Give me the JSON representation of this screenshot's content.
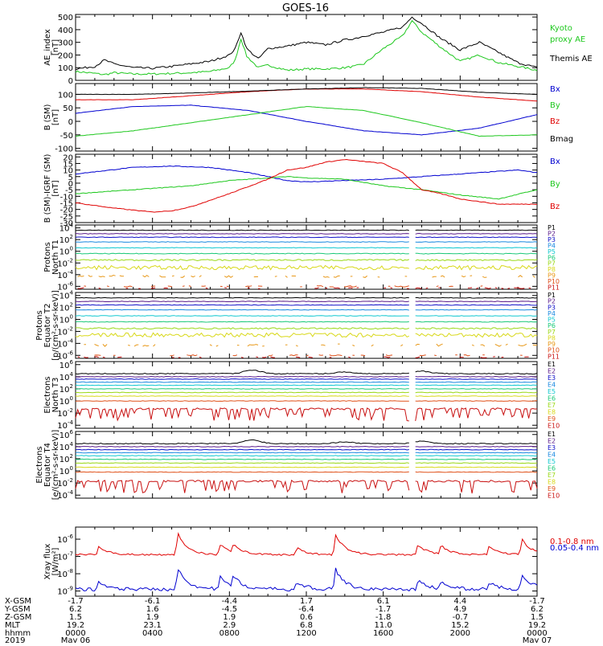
{
  "title": "GOES-16",
  "colors": {
    "black": "#000000",
    "red": "#e00000",
    "green": "#1ec81e",
    "blue": "#0000d0",
    "p1": "#000000",
    "p2": "#5a1a8a",
    "p3": "#1010c8",
    "p4": "#1888e0",
    "p5": "#10c8d0",
    "p6": "#18c878",
    "p7": "#9ad818",
    "p8": "#d8d818",
    "p9": "#e89818",
    "p10": "#e05018",
    "p11": "#c81010"
  },
  "chart_data": [
    {
      "type": "line",
      "ylabel": [
        "AE_index",
        "[nT]"
      ],
      "ylim": [
        0,
        520
      ],
      "yticks": [
        0,
        100,
        200,
        300,
        400,
        500
      ],
      "series": [
        {
          "name": "Kyoto proxy AE",
          "color": "#1ec81e",
          "x": [
            0,
            1,
            1.5,
            2,
            3,
            4,
            5,
            6,
            7,
            8,
            8.3,
            8.6,
            8.9,
            9.5,
            10,
            11,
            12,
            13,
            14,
            14.5,
            15,
            16,
            17,
            17.5,
            18,
            19,
            20,
            21,
            22,
            23,
            24
          ],
          "y": [
            70,
            55,
            45,
            60,
            50,
            50,
            55,
            60,
            70,
            100,
            160,
            330,
            190,
            100,
            120,
            80,
            90,
            90,
            100,
            110,
            130,
            250,
            350,
            470,
            380,
            260,
            150,
            200,
            140,
            110,
            80
          ]
        },
        {
          "name": "Themis AE",
          "color": "#000000",
          "x": [
            0,
            1,
            1.5,
            2,
            3,
            4,
            5,
            6,
            7,
            8,
            8.3,
            8.6,
            8.9,
            9.5,
            10,
            11,
            12,
            13,
            14,
            14.5,
            15,
            16,
            17,
            17.5,
            18,
            19,
            20,
            21,
            22,
            23,
            24
          ],
          "y": [
            90,
            110,
            160,
            130,
            100,
            95,
            110,
            130,
            150,
            200,
            250,
            380,
            250,
            170,
            250,
            270,
            300,
            280,
            320,
            330,
            350,
            380,
            420,
            500,
            450,
            330,
            240,
            300,
            220,
            140,
            100
          ]
        }
      ]
    },
    {
      "type": "line",
      "ylabel": [
        "B (SM)",
        "[nT]"
      ],
      "ylim": [
        -110,
        140
      ],
      "yticks": [
        -100,
        -50,
        0,
        50,
        100
      ],
      "series": [
        {
          "name": "Bx",
          "color": "#0000d0",
          "x": [
            0,
            3,
            6,
            9,
            12,
            15,
            18,
            21,
            24
          ],
          "y": [
            30,
            55,
            60,
            40,
            0,
            -35,
            -50,
            -25,
            25
          ]
        },
        {
          "name": "By",
          "color": "#1ec81e",
          "x": [
            0,
            3,
            6,
            9,
            12,
            15,
            18,
            21,
            24
          ],
          "y": [
            -55,
            -35,
            -5,
            25,
            55,
            40,
            -5,
            -55,
            -50
          ]
        },
        {
          "name": "Bz",
          "color": "#e00000",
          "x": [
            0,
            3,
            6,
            9,
            12,
            15,
            18,
            21,
            24
          ],
          "y": [
            80,
            80,
            95,
            110,
            120,
            120,
            110,
            90,
            75
          ]
        },
        {
          "name": "Bmag",
          "color": "#000000",
          "x": [
            0,
            3,
            6,
            9,
            12,
            15,
            18,
            21,
            24
          ],
          "y": [
            100,
            100,
            105,
            112,
            120,
            125,
            122,
            108,
            100
          ]
        }
      ]
    },
    {
      "type": "line",
      "ylabel": [
        "B (SM)-IGRF (SM)",
        "[nT]"
      ],
      "ylim": [
        -30,
        22
      ],
      "yticks": [
        -30,
        -25,
        -20,
        -15,
        -10,
        -5,
        0,
        5,
        10,
        15,
        20
      ],
      "series": [
        {
          "name": "Bx",
          "color": "#0000d0",
          "x": [
            0,
            3,
            5,
            7,
            9,
            10,
            11,
            12,
            14,
            16,
            18,
            20,
            21,
            22,
            23,
            24
          ],
          "y": [
            7,
            12,
            13,
            12,
            8,
            5,
            2,
            1,
            2,
            3,
            5,
            7,
            8,
            9,
            10,
            8
          ]
        },
        {
          "name": "By",
          "color": "#1ec81e",
          "x": [
            0,
            2,
            4,
            6,
            8,
            10,
            11,
            12,
            14,
            16,
            18,
            20,
            22,
            24
          ],
          "y": [
            -8,
            -6,
            -4,
            -2,
            2,
            4,
            5,
            4,
            3,
            -2,
            -5,
            -9,
            -12,
            -5
          ]
        },
        {
          "name": "Bz",
          "color": "#e00000",
          "x": [
            0,
            2,
            4,
            5,
            6,
            8,
            10,
            11,
            12,
            13,
            14,
            16,
            17,
            18,
            19,
            20,
            22,
            24
          ],
          "y": [
            -15,
            -19,
            -22,
            -21,
            -18,
            -8,
            3,
            10,
            12,
            16,
            18,
            15,
            8,
            -5,
            -8,
            -12,
            -16,
            -16
          ]
        }
      ]
    },
    {
      "type": "line",
      "log": true,
      "ylabel": [
        "Protons",
        "North T1"
      ],
      "ylim": [
        -6.5,
        4.5
      ],
      "yticks": [
        -6,
        -4,
        -2,
        0,
        2,
        4
      ],
      "gap": 17.5,
      "series": [
        {
          "name": "P1",
          "color": "#000000",
          "y0": 3.6,
          "noise": 0.05
        },
        {
          "name": "P2",
          "color": "#5a1a8a",
          "y0": 3.0,
          "noise": 0.05
        },
        {
          "name": "P3",
          "color": "#1010c8",
          "y0": 2.4,
          "noise": 0.05
        },
        {
          "name": "P4",
          "color": "#1888e0",
          "y0": 1.6,
          "noise": 0.05
        },
        {
          "name": "P5",
          "color": "#10c8d0",
          "y0": 0.6,
          "noise": 0.05
        },
        {
          "name": "P6",
          "color": "#18c878",
          "y0": -0.4,
          "noise": 0.06
        },
        {
          "name": "P7",
          "color": "#9ad818",
          "y0": -1.5,
          "noise": 0.12
        },
        {
          "name": "P8",
          "color": "#d8d818",
          "y0": -2.8,
          "noise": 0.35
        },
        {
          "name": "P9",
          "color": "#e89818",
          "y0": -4.3,
          "noise": 0.2,
          "sparse": true
        },
        {
          "name": "P10",
          "color": "#e05018",
          "y0": -6.0,
          "noise": 0.1,
          "sparse": true
        },
        {
          "name": "P11",
          "color": "#c81010",
          "y0": -6.3,
          "noise": 0.1,
          "sparse": true
        }
      ]
    },
    {
      "type": "line",
      "log": true,
      "ylabel": [
        "Protons",
        "Equator T2",
        "[p/(cm²-s-sr-keV)]"
      ],
      "ylim": [
        -6.5,
        4.5
      ],
      "yticks": [
        -6,
        -4,
        -2,
        0,
        2,
        4
      ],
      "gap": 17.5,
      "series": [
        {
          "name": "P1",
          "color": "#000000",
          "y0": 3.6,
          "noise": 0.05
        },
        {
          "name": "P2",
          "color": "#5a1a8a",
          "y0": 3.0,
          "noise": 0.05
        },
        {
          "name": "P3",
          "color": "#1010c8",
          "y0": 2.4,
          "noise": 0.05
        },
        {
          "name": "P4",
          "color": "#1888e0",
          "y0": 1.6,
          "noise": 0.05
        },
        {
          "name": "P5",
          "color": "#10c8d0",
          "y0": 0.6,
          "noise": 0.05
        },
        {
          "name": "P6",
          "color": "#18c878",
          "y0": -0.4,
          "noise": 0.06
        },
        {
          "name": "P7",
          "color": "#9ad818",
          "y0": -1.5,
          "noise": 0.12
        },
        {
          "name": "P8",
          "color": "#d8d818",
          "y0": -2.6,
          "noise": 0.35
        },
        {
          "name": "P9",
          "color": "#e89818",
          "y0": -4.3,
          "noise": 0.2,
          "sparse": true
        },
        {
          "name": "P10",
          "color": "#e05018",
          "y0": -6.0,
          "noise": 0.1,
          "sparse": true
        },
        {
          "name": "P11",
          "color": "#c81010",
          "y0": -6.3,
          "noise": 0.1,
          "sparse": true
        }
      ]
    },
    {
      "type": "line",
      "log": true,
      "ylabel": [
        "Electrons",
        "North T3"
      ],
      "ylim": [
        -4.5,
        6.5
      ],
      "yticks": [
        -4,
        -2,
        0,
        2,
        4,
        6
      ],
      "gap": 17.5,
      "series": [
        {
          "name": "E1",
          "color": "#000000",
          "y0": 4.5,
          "noise": 0.08,
          "bumps": [
            [
              9.2,
              0.6
            ],
            [
              14,
              0.3
            ],
            [
              18,
              0.4
            ]
          ]
        },
        {
          "name": "E2",
          "color": "#5a1a8a",
          "y0": 4.0,
          "noise": 0.05
        },
        {
          "name": "E3",
          "color": "#1010c8",
          "y0": 3.6,
          "noise": 0.05
        },
        {
          "name": "E4",
          "color": "#1888e0",
          "y0": 3.1,
          "noise": 0.05
        },
        {
          "name": "E5",
          "color": "#10c8d0",
          "y0": 2.6,
          "noise": 0.05
        },
        {
          "name": "E6",
          "color": "#18c878",
          "y0": 2.0,
          "noise": 0.05
        },
        {
          "name": "E7",
          "color": "#9ad818",
          "y0": 1.4,
          "noise": 0.05
        },
        {
          "name": "E8",
          "color": "#d8d818",
          "y0": 0.8,
          "noise": 0.05
        },
        {
          "name": "E9",
          "color": "#e05018",
          "y0": 0.0,
          "noise": 0.05
        },
        {
          "name": "E10",
          "color": "#c81010",
          "y0": -1.3,
          "noise": 0.15,
          "spikes": true
        }
      ]
    },
    {
      "type": "line",
      "log": true,
      "ylabel": [
        "Electrons",
        "Equator T4",
        "[e/(cm²-s-sr-keV)]"
      ],
      "ylim": [
        -4.5,
        6.5
      ],
      "yticks": [
        -4,
        -2,
        0,
        2,
        4,
        6
      ],
      "gap": 17.5,
      "series": [
        {
          "name": "E1",
          "color": "#000000",
          "y0": 4.5,
          "noise": 0.08,
          "bumps": [
            [
              9.2,
              0.6
            ],
            [
              14,
              0.3
            ],
            [
              18,
              0.4
            ]
          ]
        },
        {
          "name": "E2",
          "color": "#5a1a8a",
          "y0": 4.0,
          "noise": 0.05
        },
        {
          "name": "E3",
          "color": "#1010c8",
          "y0": 3.5,
          "noise": 0.05
        },
        {
          "name": "E4",
          "color": "#1888e0",
          "y0": 3.0,
          "noise": 0.05
        },
        {
          "name": "E5",
          "color": "#10c8d0",
          "y0": 2.5,
          "noise": 0.05
        },
        {
          "name": "E6",
          "color": "#18c878",
          "y0": 1.9,
          "noise": 0.05
        },
        {
          "name": "E7",
          "color": "#9ad818",
          "y0": 1.3,
          "noise": 0.05
        },
        {
          "name": "E8",
          "color": "#d8d818",
          "y0": 0.6,
          "noise": 0.05
        },
        {
          "name": "E9",
          "color": "#e05018",
          "y0": -0.2,
          "noise": 0.05
        },
        {
          "name": "E10",
          "color": "#c81010",
          "y0": -1.7,
          "noise": 0.15,
          "spikes": true
        }
      ]
    },
    {
      "type": "line",
      "log": true,
      "ylabel": [
        "Xray flux",
        "[W/m²]"
      ],
      "ylim": [
        -9.3,
        -5.3
      ],
      "yticks": [
        -9,
        -8,
        -7,
        -6
      ],
      "series": [
        {
          "name": "0.1-0.8 nm",
          "color": "#e00000",
          "y0": -6.9,
          "noise": 0.05,
          "flares": [
            [
              1.2,
              0.5
            ],
            [
              5.3,
              1.3
            ],
            [
              7.5,
              0.6
            ],
            [
              8.2,
              0.5
            ],
            [
              11.5,
              0.4
            ],
            [
              13.5,
              1.2
            ],
            [
              17.8,
              0.6
            ],
            [
              19.0,
              0.5
            ],
            [
              21.5,
              0.5
            ],
            [
              23.2,
              0.9
            ]
          ]
        },
        {
          "name": "0.05-0.4 nm",
          "color": "#0000d0",
          "y0": -8.9,
          "noise": 0.1,
          "flares": [
            [
              1.2,
              0.4
            ],
            [
              5.3,
              1.3
            ],
            [
              7.5,
              0.7
            ],
            [
              8.2,
              0.6
            ],
            [
              11.5,
              0.4
            ],
            [
              13.5,
              1.2
            ],
            [
              17.8,
              0.5
            ],
            [
              19.0,
              0.4
            ],
            [
              21.5,
              0.4
            ],
            [
              23.2,
              0.9
            ]
          ]
        }
      ]
    }
  ],
  "legend_labels": [
    [
      "Kyoto",
      "proxy AE",
      "Themis AE"
    ],
    [
      "Bx",
      "By",
      "Bz",
      "Bmag"
    ],
    [
      "Bx",
      "By",
      "Bz"
    ],
    [
      "P1",
      "P2",
      "P3",
      "P4",
      "P5",
      "P6",
      "P7",
      "P8",
      "P9",
      "P10",
      "P11"
    ],
    [
      "P1",
      "P2",
      "P3",
      "P4",
      "P5",
      "P6",
      "P7",
      "P8",
      "P9",
      "P10",
      "P11"
    ],
    [
      "E1",
      "E2",
      "E3",
      "E4",
      "E5",
      "E6",
      "E7",
      "E8",
      "E9",
      "E10"
    ],
    [
      "E1",
      "E2",
      "E3",
      "E4",
      "E5",
      "E6",
      "E7",
      "E8",
      "E9",
      "E10"
    ],
    [
      "0.1-0.8 nm",
      "0.05-0.4 nm"
    ]
  ],
  "time_axis": {
    "row_labels": [
      "X-GSM",
      "Y-GSM",
      "Z-GSM",
      "MLT",
      "hhmm",
      "2019"
    ],
    "columns": [
      {
        "t": 0,
        "values": [
          "-1.7",
          "6.2",
          "1.5",
          "19.2",
          "0000",
          "May 06"
        ]
      },
      {
        "t": 4,
        "values": [
          "-6.1",
          "1.6",
          "1.9",
          "23.1",
          "0400",
          ""
        ]
      },
      {
        "t": 8,
        "values": [
          "-4.4",
          "-4.5",
          "1.9",
          "2.9",
          "0800",
          ""
        ]
      },
      {
        "t": 12,
        "values": [
          "1.7",
          "-6.4",
          "0.6",
          "6.8",
          "1200",
          ""
        ]
      },
      {
        "t": 16,
        "values": [
          "6.1",
          "-1.7",
          "-1.8",
          "11.0",
          "1600",
          ""
        ]
      },
      {
        "t": 20,
        "values": [
          "4.4",
          "4.9",
          "-0.7",
          "15.2",
          "2000",
          ""
        ]
      },
      {
        "t": 24,
        "values": [
          "-1.7",
          "6.2",
          "1.5",
          "19.2",
          "0000",
          "May 07"
        ]
      }
    ]
  }
}
